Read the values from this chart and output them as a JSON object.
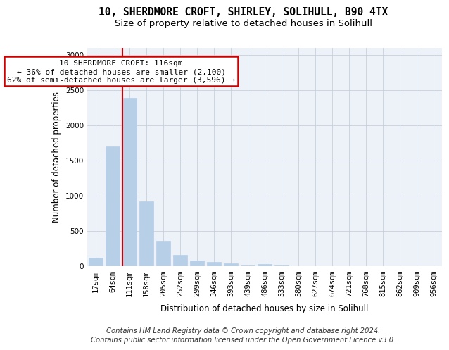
{
  "title_line1": "10, SHERDMORE CROFT, SHIRLEY, SOLIHULL, B90 4TX",
  "title_line2": "Size of property relative to detached houses in Solihull",
  "xlabel": "Distribution of detached houses by size in Solihull",
  "ylabel": "Number of detached properties",
  "categories": [
    "17sqm",
    "64sqm",
    "111sqm",
    "158sqm",
    "205sqm",
    "252sqm",
    "299sqm",
    "346sqm",
    "393sqm",
    "439sqm",
    "486sqm",
    "533sqm",
    "580sqm",
    "627sqm",
    "674sqm",
    "721sqm",
    "768sqm",
    "815sqm",
    "862sqm",
    "909sqm",
    "956sqm"
  ],
  "values": [
    115,
    1700,
    2390,
    920,
    355,
    155,
    80,
    55,
    35,
    5,
    25,
    5,
    0,
    0,
    0,
    0,
    0,
    0,
    0,
    0,
    0
  ],
  "bar_color": "#b8cfe8",
  "bar_edge_color": "#b8cfe8",
  "red_line_bar_index": 2,
  "annotation_text_line1": "10 SHERDMORE CROFT: 116sqm",
  "annotation_text_line2": "← 36% of detached houses are smaller (2,100)",
  "annotation_text_line3": "62% of semi-detached houses are larger (3,596) →",
  "annotation_box_color": "#ffffff",
  "annotation_box_edge": "#cc0000",
  "red_line_color": "#cc0000",
  "ylim": [
    0,
    3100
  ],
  "yticks": [
    0,
    500,
    1000,
    1500,
    2000,
    2500,
    3000
  ],
  "grid_color": "#c8d0dc",
  "bg_color": "#edf1f8",
  "fig_bg_color": "#ffffff",
  "footer_line1": "Contains HM Land Registry data © Crown copyright and database right 2024.",
  "footer_line2": "Contains public sector information licensed under the Open Government Licence v3.0.",
  "title_fontsize": 10.5,
  "subtitle_fontsize": 9.5,
  "axis_label_fontsize": 8.5,
  "tick_fontsize": 7.5,
  "annotation_fontsize": 8,
  "footer_fontsize": 7.2
}
